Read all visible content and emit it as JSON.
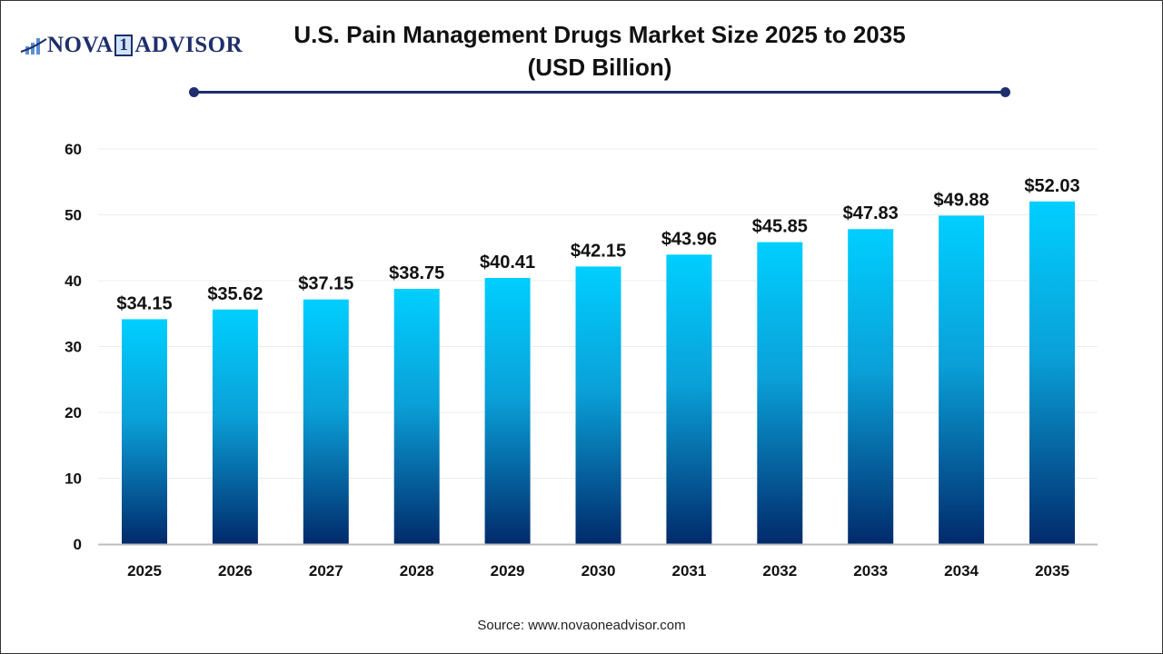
{
  "logo": {
    "text_left": "NOVA",
    "text_one": "1",
    "text_right": "ADVISOR"
  },
  "title_line1": "U.S. Pain Management Drugs Market Size 2025 to 2035",
  "title_line2": "(USD Billion)",
  "source": "Source: www.novaoneadvisor.com",
  "colors": {
    "bar_top": "#00cfff",
    "bar_bottom": "#012a6b",
    "accent": "#1f2f6b"
  },
  "chart_data": {
    "type": "bar",
    "categories": [
      "2025",
      "2026",
      "2027",
      "2028",
      "2029",
      "2030",
      "2031",
      "2032",
      "2033",
      "2034",
      "2035"
    ],
    "values": [
      34.15,
      35.62,
      37.15,
      38.75,
      40.41,
      42.15,
      43.96,
      45.85,
      47.83,
      49.88,
      52.03
    ],
    "data_labels": [
      "$34.15",
      "$35.62",
      "$37.15",
      "$38.75",
      "$40.41",
      "$42.15",
      "$43.96",
      "$45.85",
      "$47.83",
      "$49.88",
      "$52.03"
    ],
    "ylim": [
      0,
      60
    ],
    "yticks": [
      0,
      10,
      20,
      30,
      40,
      50,
      60
    ],
    "grid": true,
    "legend": "none",
    "xlabel": "",
    "ylabel": ""
  }
}
